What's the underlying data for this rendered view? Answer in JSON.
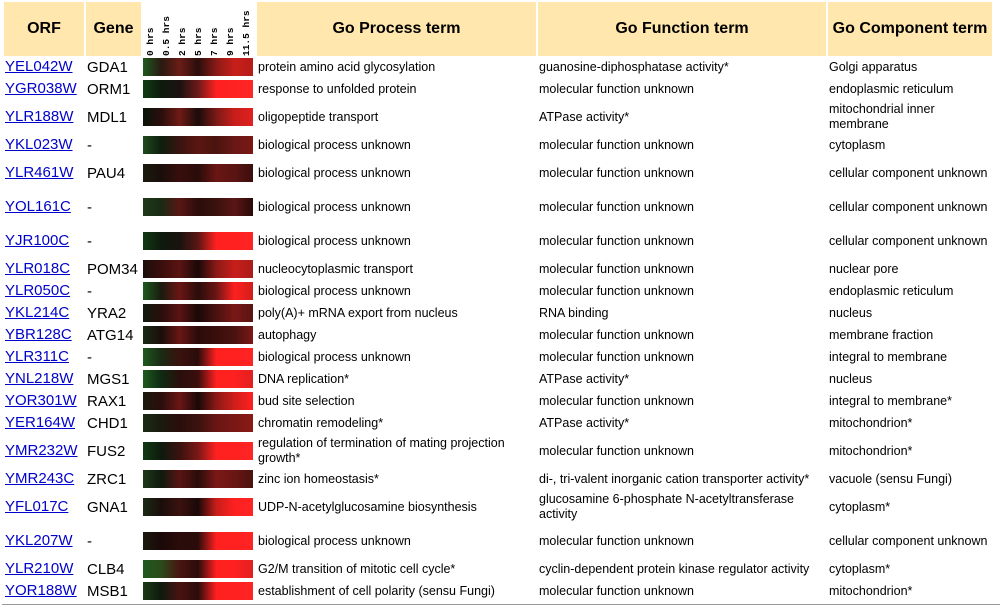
{
  "headers": {
    "orf": "ORF",
    "gene": "Gene",
    "process": "Go Process term",
    "function": "Go Function term",
    "component": "Go Component term"
  },
  "time_labels": [
    "0 hrs",
    "0.5 hrs",
    "2 hrs",
    "5 hrs",
    "7 hrs",
    "9 hrs",
    "11.5 hrs"
  ],
  "rows": [
    {
      "orf": "YEL042W",
      "gene": "GDA1",
      "process": "protein amino acid glycosylation",
      "function": "guanosine-diphosphatase activity*",
      "component": "Golgi apparatus",
      "expr": [
        "#1e5a1e",
        "#2a1a12",
        "#6b1c16",
        "#2a0e0c",
        "#8a1a16",
        "#c81e1a",
        "#b51c18"
      ]
    },
    {
      "orf": "YGR038W",
      "gene": "ORM1",
      "process": "response to unfolded protein",
      "function": "molecular function unknown",
      "component": "endoplasmic reticulum",
      "expr": [
        "#0e3d12",
        "#0e1a0e",
        "#1b1212",
        "#6b1a18",
        "#ff2020",
        "#ff2222",
        "#ff2626"
      ]
    },
    {
      "orf": "YLR188W",
      "gene": "MDL1",
      "process": "oligopeptide transport",
      "function": "ATPase activity*",
      "component": "mitochondrial inner membrane",
      "expr": [
        "#081408",
        "#2a0e0c",
        "#701a16",
        "#1a0c0a",
        "#7a1a16",
        "#c81e1a",
        "#e02020"
      ]
    },
    {
      "orf": "YKL023W",
      "gene": "-",
      "process": "biological process unknown",
      "function": "molecular function unknown",
      "component": "cytoplasm",
      "expr": [
        "#1e4a1e",
        "#0e1e0e",
        "#3a1410",
        "#5a1610",
        "#4a1410",
        "#6a1816",
        "#7a1816"
      ]
    },
    {
      "orf": "YLR461W",
      "gene": "PAU4",
      "process": "biological process unknown",
      "function": "molecular function unknown",
      "component": "cellular component unknown",
      "expr": [
        "#1a1a0e",
        "#1a0e0a",
        "#380e0c",
        "#2a0c0a",
        "#6a1614",
        "#5a1412",
        "#3a0e0c"
      ]
    },
    {
      "orf": "YOL161C",
      "gene": "-",
      "process": "biological process unknown",
      "function": "molecular function unknown",
      "component": "cellular component unknown",
      "expr": [
        "#1e3a1a",
        "#1a2a14",
        "#5a1614",
        "#2a0c0a",
        "#3a120e",
        "#5a1614",
        "#2a0a08"
      ]
    },
    {
      "orf": "YJR100C",
      "gene": "-",
      "process": "biological process unknown",
      "function": "molecular function unknown",
      "component": "cellular component unknown",
      "expr": [
        "#0e3a12",
        "#0e1a0e",
        "#1a120e",
        "#5a1614",
        "#ff2020",
        "#ff2020",
        "#ff2424"
      ]
    },
    {
      "orf": "YLR018C",
      "gene": "POM34",
      "process": "nucleocytoplasmic transport",
      "function": "molecular function unknown",
      "component": "nuclear pore",
      "expr": [
        "#1a0e0a",
        "#3a0e0c",
        "#5a1412",
        "#1a0808",
        "#8a1a16",
        "#c81e1a",
        "#aa1c18"
      ]
    },
    {
      "orf": "YLR050C",
      "gene": "-",
      "process": "biological process unknown",
      "function": "molecular function unknown",
      "component": "endoplasmic reticulum",
      "expr": [
        "#1e5a1e",
        "#1a1a0e",
        "#6a1614",
        "#2a0c0a",
        "#6a1614",
        "#ff2020",
        "#d01e1a"
      ]
    },
    {
      "orf": "YKL214C",
      "gene": "YRA2",
      "process": "poly(A)+ mRNA export from nucleus",
      "function": "RNA binding",
      "component": "nucleus",
      "expr": [
        "#0e1a0e",
        "#2a0e0c",
        "#5a1412",
        "#1a0808",
        "#4a1210",
        "#7a1816",
        "#5a1412"
      ]
    },
    {
      "orf": "YBR128C",
      "gene": "ATG14",
      "process": "autophagy",
      "function": "molecular function unknown",
      "component": "membrane fraction",
      "expr": [
        "#1a2a14",
        "#1a0e0a",
        "#6a1614",
        "#2a0c0a",
        "#3a0e0c",
        "#4a1210",
        "#7a1816"
      ]
    },
    {
      "orf": "YLR311C",
      "gene": "-",
      "process": "biological process unknown",
      "function": "molecular function unknown",
      "component": "integral to membrane",
      "expr": [
        "#1e5a1e",
        "#1a2a14",
        "#3a120e",
        "#2a0c0a",
        "#ff2020",
        "#ff2020",
        "#ff2424"
      ]
    },
    {
      "orf": "YNL218W",
      "gene": "MGS1",
      "process": "DNA replication*",
      "function": "ATPase activity*",
      "component": "nucleus",
      "expr": [
        "#1e5a1e",
        "#0e2a12",
        "#2a0e0c",
        "#3a0e0c",
        "#ff2020",
        "#ff2020",
        "#e02020"
      ]
    },
    {
      "orf": "YOR301W",
      "gene": "RAX1",
      "process": "bud site selection",
      "function": "molecular function unknown",
      "component": "integral to membrane*",
      "expr": [
        "#1a1a0e",
        "#2a0e0c",
        "#6a1614",
        "#1a0808",
        "#8a1a16",
        "#d01e1a",
        "#ff2020"
      ]
    },
    {
      "orf": "YER164W",
      "gene": "CHD1",
      "process": "chromatin remodeling*",
      "function": "ATPase activity*",
      "component": "mitochondrion*",
      "expr": [
        "#1a2a14",
        "#1a1a0e",
        "#2a0e0c",
        "#3a120e",
        "#6a1614",
        "#7a1816",
        "#8a1a16"
      ]
    },
    {
      "orf": "YMR232W",
      "gene": "FUS2",
      "process": "regulation of termination of mating projection growth*",
      "function": "molecular function unknown",
      "component": "mitochondrion*",
      "expr": [
        "#0e3a12",
        "#0e1a0e",
        "#3a120e",
        "#7a1816",
        "#ff2020",
        "#ff2020",
        "#ff2626"
      ]
    },
    {
      "orf": "YMR243C",
      "gene": "ZRC1",
      "process": "zinc ion homeostasis*",
      "function": "di-, tri-valent inorganic cation transporter activity*",
      "component": "vacuole (sensu Fungi)",
      "expr": [
        "#1e3a1a",
        "#0e1a0e",
        "#5a1412",
        "#2a0c0a",
        "#7a1816",
        "#6a1614",
        "#4a1210"
      ]
    },
    {
      "orf": "YFL017C",
      "gene": "GNA1",
      "process": "UDP-N-acetylglucosamine biosynthesis",
      "function": "glucosamine 6-phosphate N-acetyltransferase activity",
      "component": "cytoplasm*",
      "expr": [
        "#1a2a14",
        "#1a0e0a",
        "#3a120e",
        "#1a0808",
        "#c81e1a",
        "#ff2020",
        "#ff2424"
      ]
    },
    {
      "orf": "YKL207W",
      "gene": "-",
      "process": "biological process unknown",
      "function": "molecular function unknown",
      "component": "cellular component unknown",
      "expr": [
        "#1a1a0e",
        "#1a0808",
        "#2a0c0a",
        "#2a0c0a",
        "#ff2020",
        "#ff2020",
        "#ff2424"
      ]
    },
    {
      "orf": "YLR210W",
      "gene": "CLB4",
      "process": "G2/M transition of mitotic cell cycle*",
      "function": "cyclin-dependent protein kinase regulator activity",
      "component": "cytoplasm*",
      "expr": [
        "#1e5a1e",
        "#2a4a1a",
        "#4a1410",
        "#2a0c0a",
        "#ff2020",
        "#ff2020",
        "#e02020"
      ]
    },
    {
      "orf": "YOR188W",
      "gene": "MSB1",
      "process": "establishment of cell polarity (sensu Fungi)",
      "function": "molecular function unknown",
      "component": "mitochondrion*",
      "expr": [
        "#1a3a14",
        "#0e1a0e",
        "#4a1210",
        "#2a0c0a",
        "#ff2020",
        "#ff2020",
        "#ff2424"
      ]
    }
  ]
}
